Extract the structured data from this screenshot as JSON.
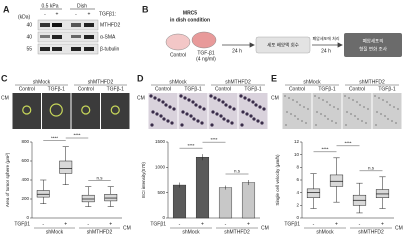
{
  "panel_A": {
    "label": "A",
    "substrates": [
      "0.5 kPa",
      "Dish"
    ],
    "treatment": "TGFβ1:",
    "signs": [
      "-",
      "+",
      "-",
      "+"
    ],
    "unit": "(kDa)",
    "markers": [
      "40",
      "40",
      "55"
    ],
    "proteins": [
      "MTHFD2",
      "α-SMA",
      "β-tubulin"
    ]
  },
  "panel_B": {
    "label": "B",
    "cell_line": "MRC5",
    "condition": "in dish condition",
    "groups": [
      "Control",
      "TGF-β1"
    ],
    "dose": "(4 ng/ml)",
    "time_1": "24 h",
    "step_1": "세포 배양액 회수",
    "arrow_label": "폐암세포에 처리",
    "time_2": "24 h",
    "step_2": [
      "폐암세포의",
      "형질 변화 조사"
    ]
  },
  "image_panels": [
    {
      "label": "C",
      "cm": "CM",
      "groups": [
        "shMock",
        "shMTHFD2"
      ],
      "conditions": [
        "Control",
        "TGFβ-1",
        "Control",
        "TGFβ-1"
      ]
    },
    {
      "label": "D",
      "cm": "CM",
      "groups": [
        "shMock",
        "shMTHFD2"
      ],
      "conditions": [
        "Control",
        "TGFβ-1",
        "Control",
        "TGFβ-1"
      ]
    },
    {
      "label": "E",
      "cm": "CM",
      "groups": [
        "shMock",
        "shMTHFD2"
      ],
      "conditions": [
        "Control",
        "TGFβ-1",
        "Control",
        "TGFβ-1"
      ]
    }
  ],
  "chart_data": [
    {
      "type": "box",
      "ylabel": "Area of tumor sphere (μm²)",
      "ylim": [
        0,
        800
      ],
      "yticks": [
        0,
        200,
        400,
        600,
        800
      ],
      "factor": "TGFβ1",
      "categories": [
        "-",
        "+",
        "-",
        "+"
      ],
      "groups": [
        "shMock",
        "shMTHFD2"
      ],
      "cm": "CM",
      "color": "#d9d9d9",
      "boxes": [
        {
          "min": 150,
          "q1": 220,
          "median": 250,
          "q3": 290,
          "max": 400
        },
        {
          "min": 350,
          "q1": 470,
          "median": 520,
          "q3": 600,
          "max": 750
        },
        {
          "min": 120,
          "q1": 170,
          "median": 200,
          "q3": 240,
          "max": 330
        },
        {
          "min": 120,
          "q1": 180,
          "median": 210,
          "q3": 250,
          "max": 330
        }
      ],
      "annotations": [
        "****",
        "****",
        "n.s"
      ]
    },
    {
      "type": "bar",
      "ylabel": "ECI intensity(570)",
      "ylim": [
        0,
        1500
      ],
      "yticks": [
        0,
        500,
        1000,
        1500
      ],
      "factor": "TGFβ1",
      "categories": [
        "-",
        "+",
        "-",
        "+"
      ],
      "groups": [
        "shMock",
        "shMTHFD2"
      ],
      "cm": "CM",
      "colors": [
        "#5a5a5a",
        "#5a5a5a",
        "#c8c8c8",
        "#c8c8c8"
      ],
      "values": [
        650,
        1200,
        600,
        700
      ],
      "errors": [
        50,
        60,
        40,
        50
      ],
      "annotations": [
        "****",
        "****",
        "n.s"
      ]
    },
    {
      "type": "box",
      "ylabel": "Single cell velocity (μm/h)",
      "ylim": [
        0,
        12
      ],
      "yticks": [
        0,
        2,
        4,
        6,
        8,
        10,
        12
      ],
      "factor": "TGFβ1",
      "categories": [
        "-",
        "+",
        "-",
        "+"
      ],
      "groups": [
        "shMock",
        "shMTHFD2"
      ],
      "cm": "CM",
      "color": "#d9d9d9",
      "boxes": [
        {
          "min": 1.5,
          "q1": 3.2,
          "median": 4,
          "q3": 4.6,
          "max": 7
        },
        {
          "min": 2.5,
          "q1": 5,
          "median": 5.8,
          "q3": 6.8,
          "max": 9.5
        },
        {
          "min": 0.8,
          "q1": 2,
          "median": 2.8,
          "q3": 3.6,
          "max": 5.5
        },
        {
          "min": 1.5,
          "q1": 3.2,
          "median": 3.8,
          "q3": 4.5,
          "max": 6.5
        }
      ],
      "annotations": [
        "****",
        "****",
        "n.s"
      ]
    }
  ]
}
